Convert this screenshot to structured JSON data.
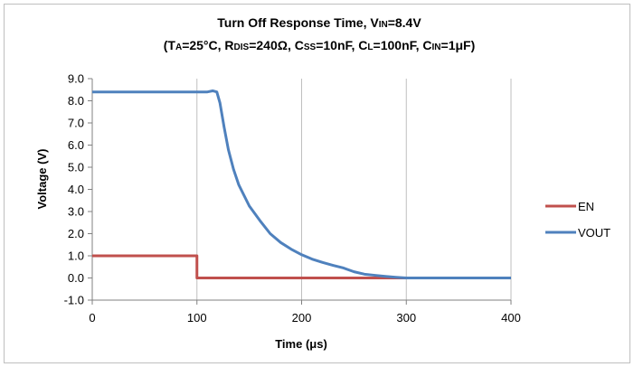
{
  "chart_data": {
    "type": "line",
    "title_line1": {
      "main": "Turn Off Response Time, V",
      "sub": "IN",
      "rest": "=8.4V"
    },
    "title_line2": [
      {
        "t": "(T",
        "small": false
      },
      {
        "t": "A",
        "small": true
      },
      {
        "t": "=25°C, R",
        "small": false
      },
      {
        "t": "DIS",
        "small": true
      },
      {
        "t": "=240Ω, C",
        "small": false
      },
      {
        "t": "SS",
        "small": true
      },
      {
        "t": "=10nF, C",
        "small": false
      },
      {
        "t": "L",
        "small": true
      },
      {
        "t": "=100nF, C",
        "small": false
      },
      {
        "t": "IN",
        "small": true
      },
      {
        "t": "=1μF)",
        "small": false
      }
    ],
    "xlabel": "Time (μs)",
    "ylabel": "Voltage (V)",
    "xlim": [
      0,
      400
    ],
    "ylim": [
      -1.0,
      9.0
    ],
    "x_ticks": [
      "0",
      "100",
      "200",
      "300",
      "400"
    ],
    "y_ticks": [
      "9.0",
      "8.0",
      "7.0",
      "6.0",
      "5.0",
      "4.0",
      "3.0",
      "2.0",
      "1.0",
      "0.0",
      "-1.0"
    ],
    "grid": "vertical",
    "legend_position": "right",
    "series": [
      {
        "name": "EN",
        "color": "#c0504d",
        "points": [
          [
            0,
            1.0
          ],
          [
            100,
            1.0
          ],
          [
            100,
            0.0
          ],
          [
            400,
            0.0
          ]
        ]
      },
      {
        "name": "VOUT",
        "color": "#4f81bd",
        "points": [
          [
            0,
            8.4
          ],
          [
            100,
            8.4
          ],
          [
            110,
            8.4
          ],
          [
            115,
            8.45
          ],
          [
            119,
            8.4
          ],
          [
            122,
            7.9
          ],
          [
            126,
            6.8
          ],
          [
            130,
            5.8
          ],
          [
            135,
            4.9
          ],
          [
            140,
            4.2
          ],
          [
            150,
            3.25
          ],
          [
            160,
            2.6
          ],
          [
            170,
            2.0
          ],
          [
            180,
            1.6
          ],
          [
            190,
            1.3
          ],
          [
            200,
            1.05
          ],
          [
            210,
            0.85
          ],
          [
            220,
            0.7
          ],
          [
            230,
            0.57
          ],
          [
            240,
            0.45
          ],
          [
            250,
            0.28
          ],
          [
            260,
            0.17
          ],
          [
            270,
            0.12
          ],
          [
            280,
            0.07
          ],
          [
            290,
            0.03
          ],
          [
            300,
            0.0
          ],
          [
            400,
            0.0
          ]
        ]
      }
    ]
  }
}
